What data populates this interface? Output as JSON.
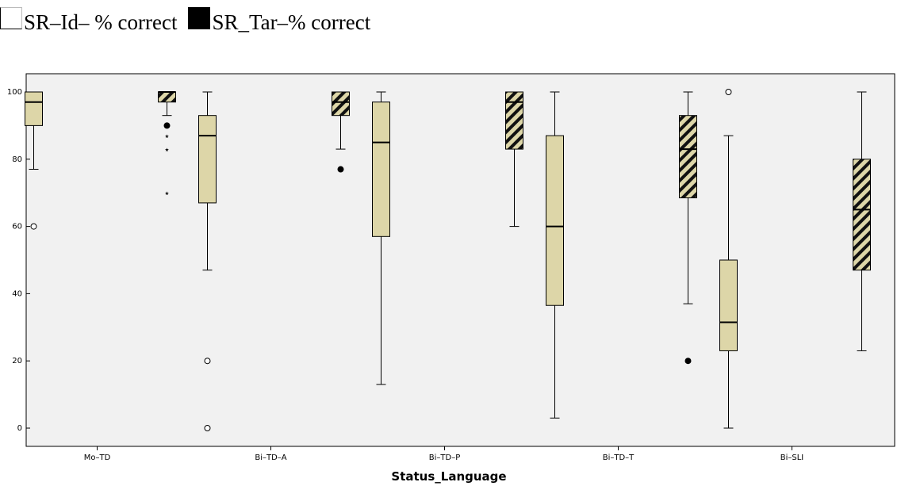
{
  "legend": {
    "items": [
      {
        "label": "SR–Id– % correct",
        "style": "open"
      },
      {
        "label": "SR_Tar–% correct",
        "style": "filled"
      }
    ]
  },
  "chart_data": {
    "type": "boxplot",
    "xlabel": "Status_Language",
    "ylabel": "",
    "ylim": [
      -5,
      105
    ],
    "yticks": [
      0,
      20,
      40,
      60,
      80,
      100
    ],
    "categories": [
      "Mo–TD",
      "Bi–TD–A",
      "Bi–TD–P",
      "Bi–TD–T",
      "Bi–SLI"
    ],
    "series": [
      {
        "name": "SR–Id– % correct",
        "fill": "#ddd6a8",
        "pattern": "plain",
        "boxes": [
          {
            "min": 77,
            "q1": 90,
            "median": 97,
            "q3": 100,
            "max": 100,
            "outliers_circle": [
              60
            ],
            "outliers_star": []
          },
          {
            "min": 47,
            "q1": 67,
            "median": 87,
            "q3": 93,
            "max": 100,
            "outliers_circle": [
              20,
              0
            ],
            "outliers_star": []
          },
          {
            "min": 13,
            "q1": 57,
            "median": 85,
            "q3": 97,
            "max": 100,
            "outliers_circle": [],
            "outliers_star": []
          },
          {
            "min": 3,
            "q1": 36.5,
            "median": 60,
            "q3": 87,
            "max": 100,
            "outliers_circle": [],
            "outliers_star": []
          },
          {
            "min": 0,
            "q1": 23,
            "median": 31.5,
            "q3": 50,
            "max": 87,
            "outliers_circle": [
              100
            ],
            "outliers_star": []
          }
        ]
      },
      {
        "name": "SR_Tar–% correct",
        "fill": "#ddd6a8",
        "pattern": "hatched",
        "boxes": [
          {
            "min": 93,
            "q1": 97,
            "median": 100,
            "q3": 100,
            "max": 100,
            "outliers_dot": [
              90
            ],
            "outliers_star": [
              87,
              83,
              70
            ]
          },
          {
            "min": 83,
            "q1": 93,
            "median": 97,
            "q3": 100,
            "max": 100,
            "outliers_dot": [
              77
            ],
            "outliers_star": []
          },
          {
            "min": 60,
            "q1": 83,
            "median": 97,
            "q3": 100,
            "max": 100,
            "outliers_dot": [],
            "outliers_star": []
          },
          {
            "min": 37,
            "q1": 68.5,
            "median": 83,
            "q3": 93,
            "max": 100,
            "outliers_dot": [
              20
            ],
            "outliers_star": []
          },
          {
            "min": 23,
            "q1": 47,
            "median": 65,
            "q3": 80,
            "max": 100,
            "outliers_dot": [],
            "outliers_star": []
          }
        ]
      }
    ],
    "plot_background": "#f1f1f1",
    "hatch_color": "#111111",
    "grid": false
  }
}
